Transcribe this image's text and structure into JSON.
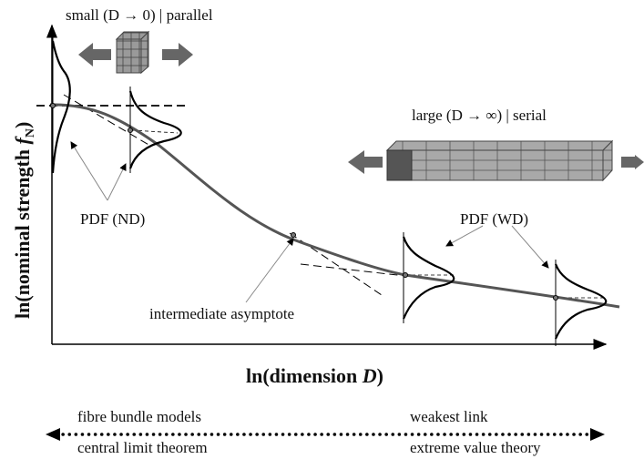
{
  "top_left_label": "small (D → 0) | parallel",
  "top_right_label": "large (D → ∞) | serial",
  "annotations": {
    "pdf_nd": "PDF (ND)",
    "pdf_wd": "PDF (WD)",
    "intermediate": "intermediate asymptote"
  },
  "y_axis_label": {
    "prefix": "ln(nominal strength ",
    "symbol": "f",
    "subscript": "N",
    "suffix": ")"
  },
  "x_axis_label": {
    "prefix": "ln(dimension ",
    "symbol": "D",
    "suffix": ")"
  },
  "bottom": {
    "left_top": "fibre bundle models",
    "left_bottom": "central limit theorem",
    "right_top": "weakest link",
    "right_bottom": "extreme value theory"
  }
}
